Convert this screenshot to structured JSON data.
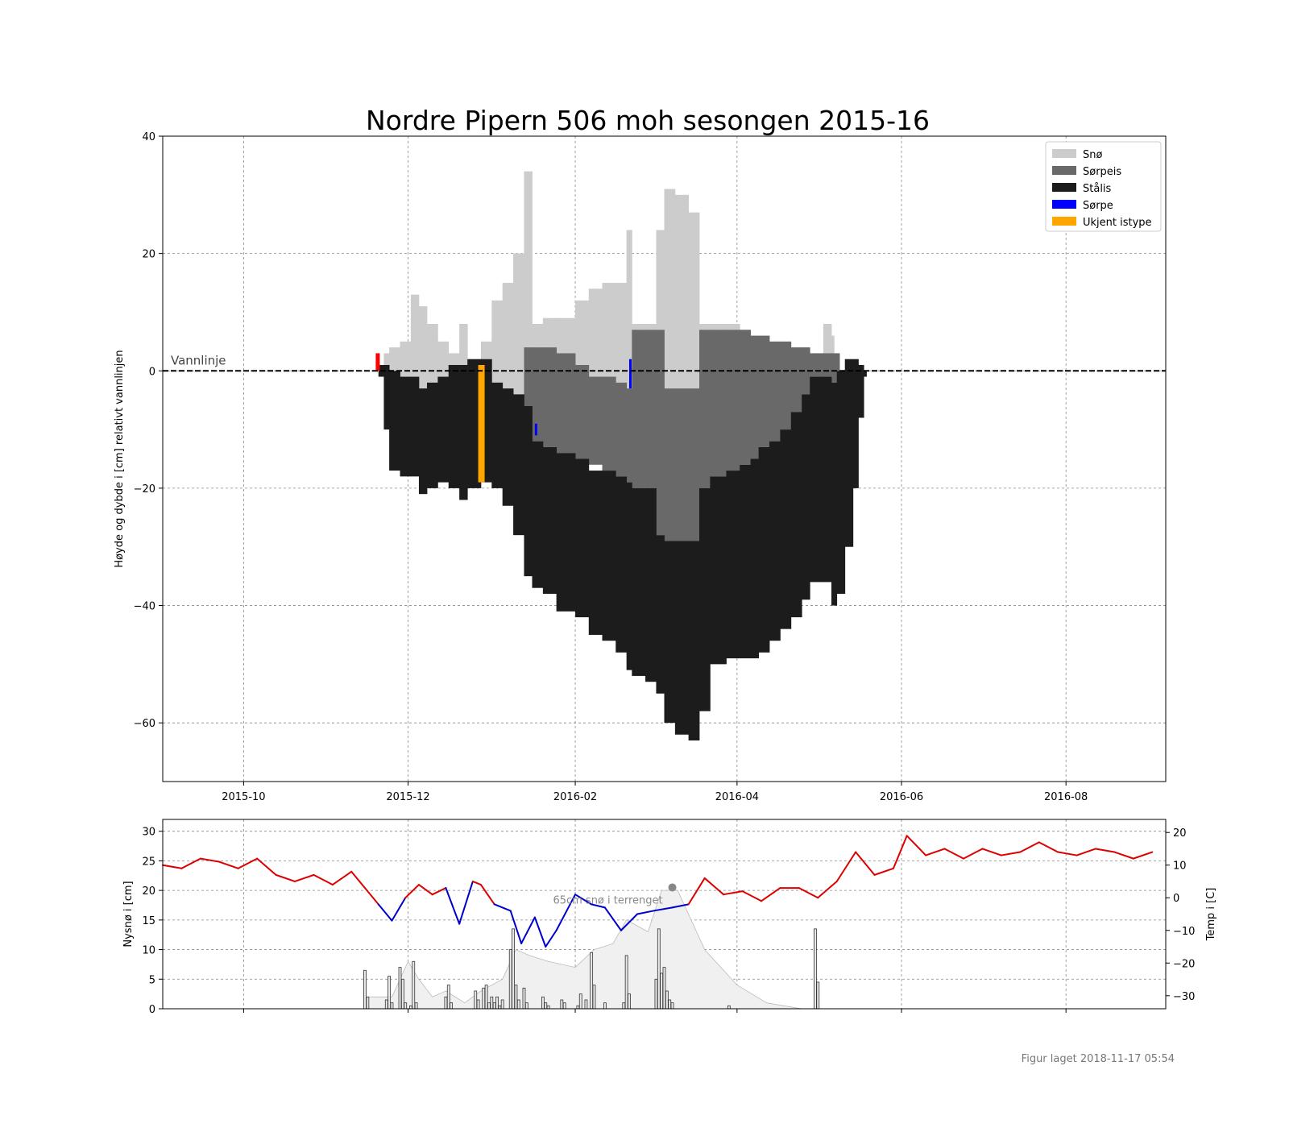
{
  "title": "Nordre Pipern 506 moh sesongen 2015-16",
  "footer": "Figur laget 2018-11-17 05:54",
  "colors": {
    "snow": "#cccccc",
    "slush_ice": "#696969",
    "black_ice": "#1c1c1c",
    "slush": "#0000ff",
    "unknown": "#ffa500",
    "temp_warm": "#dd0000",
    "temp_cold": "#0000cc",
    "waterline": "#000000",
    "grid": "#888888"
  },
  "chart_data": [
    {
      "type": "area",
      "ylabel": "Høyde og dybde i [cm] relativt vannlinjen",
      "ylim": [
        -70,
        40
      ],
      "yticks": [
        40,
        20,
        0,
        -20,
        -40,
        -60
      ],
      "xlim": [
        "2015-09-01",
        "2016-09-07"
      ],
      "xticks": [
        "2015-10",
        "2015-12",
        "2016-02",
        "2016-04",
        "2016-06",
        "2016-08"
      ],
      "grid": true,
      "legend_position": "top-right",
      "legend": [
        {
          "label": "Snø",
          "color": "#cccccc"
        },
        {
          "label": "Sørpeis",
          "color": "#696969"
        },
        {
          "label": "Stålis",
          "color": "#1c1c1c"
        },
        {
          "label": "Sørpe",
          "color": "#0000ff"
        },
        {
          "label": "Ukjent istype",
          "color": "#ffa500"
        }
      ],
      "waterline_label": "Vannlinje",
      "layers": {
        "black_ice": [
          [
            "2015-11-20",
            1,
            -1
          ],
          [
            "2015-11-22",
            1,
            -10
          ],
          [
            "2015-11-24",
            0,
            -17
          ],
          [
            "2015-11-28",
            -1,
            -18
          ],
          [
            "2015-12-02",
            -1,
            -18
          ],
          [
            "2015-12-05",
            -3,
            -21
          ],
          [
            "2015-12-08",
            -2,
            -20
          ],
          [
            "2015-12-12",
            -1,
            -19
          ],
          [
            "2015-12-16",
            1,
            -20
          ],
          [
            "2015-12-20",
            1,
            -22
          ],
          [
            "2015-12-23",
            2,
            -20
          ],
          [
            "2015-12-28",
            2,
            -19
          ],
          [
            "2016-01-01",
            -2,
            -20
          ],
          [
            "2016-01-05",
            -3,
            -23
          ],
          [
            "2016-01-09",
            -4,
            -28
          ],
          [
            "2016-01-13",
            -6,
            -35
          ],
          [
            "2016-01-16",
            -12,
            -37
          ],
          [
            "2016-01-20",
            -13,
            -38
          ],
          [
            "2016-01-25",
            -14,
            -41
          ],
          [
            "2016-02-01",
            -15,
            -42
          ],
          [
            "2016-02-06",
            -17,
            -45
          ],
          [
            "2016-02-11",
            -17,
            -46
          ],
          [
            "2016-02-16",
            -18,
            -48
          ],
          [
            "2016-02-20",
            -19,
            -51
          ],
          [
            "2016-02-22",
            -20,
            -52
          ],
          [
            "2016-02-27",
            -20,
            -53
          ],
          [
            "2016-03-02",
            -28,
            -55
          ],
          [
            "2016-03-05",
            -29,
            -60
          ],
          [
            "2016-03-09",
            -29,
            -62
          ],
          [
            "2016-03-14",
            -29,
            -63
          ],
          [
            "2016-03-18",
            -20,
            -58
          ],
          [
            "2016-03-22",
            -18,
            -50
          ],
          [
            "2016-03-28",
            -17,
            -49
          ],
          [
            "2016-04-02",
            -16,
            -49
          ],
          [
            "2016-04-06",
            -15,
            -49
          ],
          [
            "2016-04-09",
            -13,
            -48
          ],
          [
            "2016-04-13",
            -12,
            -46
          ],
          [
            "2016-04-17",
            -10,
            -44
          ],
          [
            "2016-04-21",
            -7,
            -42
          ],
          [
            "2016-04-25",
            -4,
            -39
          ],
          [
            "2016-04-28",
            -1,
            -36
          ],
          [
            "2016-05-03",
            -1,
            -36
          ],
          [
            "2016-05-06",
            -2,
            -40
          ],
          [
            "2016-05-08",
            0,
            -38
          ],
          [
            "2016-05-11",
            2,
            -30
          ],
          [
            "2016-05-14",
            2,
            -20
          ],
          [
            "2016-05-16",
            1,
            -8
          ],
          [
            "2016-05-18",
            0,
            -1
          ]
        ],
        "slush_ice": [
          [
            "2016-01-13",
            4,
            -11
          ],
          [
            "2016-01-16",
            4,
            -12
          ],
          [
            "2016-01-20",
            4,
            -13
          ],
          [
            "2016-01-25",
            3,
            -14
          ],
          [
            "2016-02-01",
            1,
            -15
          ],
          [
            "2016-02-06",
            -1,
            -16
          ],
          [
            "2016-02-11",
            -1,
            -17
          ],
          [
            "2016-02-16",
            -2,
            -18
          ],
          [
            "2016-02-20",
            -3,
            -19
          ],
          [
            "2016-02-22",
            7,
            -20
          ],
          [
            "2016-02-27",
            7,
            -20
          ],
          [
            "2016-03-02",
            7,
            -28
          ],
          [
            "2016-03-05",
            -3,
            -29
          ],
          [
            "2016-03-09",
            -3,
            -29
          ],
          [
            "2016-03-14",
            -3,
            -29
          ],
          [
            "2016-03-18",
            7,
            -20
          ],
          [
            "2016-03-22",
            7,
            -18
          ],
          [
            "2016-03-28",
            7,
            -17
          ],
          [
            "2016-04-02",
            7,
            -16
          ],
          [
            "2016-04-06",
            6,
            -15
          ],
          [
            "2016-04-09",
            6,
            -13
          ],
          [
            "2016-04-13",
            5,
            -12
          ],
          [
            "2016-04-17",
            5,
            -10
          ],
          [
            "2016-04-21",
            4,
            -7
          ],
          [
            "2016-04-25",
            4,
            -4
          ],
          [
            "2016-04-28",
            3,
            -1
          ],
          [
            "2016-05-03",
            3,
            -1
          ],
          [
            "2016-05-06",
            3,
            -2
          ],
          [
            "2016-05-08",
            3,
            0
          ]
        ],
        "snow": [
          [
            "2015-11-22",
            3,
            1
          ],
          [
            "2015-11-24",
            4,
            0
          ],
          [
            "2015-11-28",
            5,
            -1
          ],
          [
            "2015-12-02",
            13,
            -1
          ],
          [
            "2015-12-05",
            11,
            -3
          ],
          [
            "2015-12-08",
            8,
            -2
          ],
          [
            "2015-12-12",
            5,
            -1
          ],
          [
            "2015-12-16",
            3,
            1
          ],
          [
            "2015-12-20",
            8,
            1
          ],
          [
            "2015-12-23",
            2,
            2
          ],
          [
            "2015-12-28",
            5,
            2
          ],
          [
            "2016-01-01",
            12,
            -2
          ],
          [
            "2016-01-05",
            15,
            -3
          ],
          [
            "2016-01-09",
            20,
            -4
          ],
          [
            "2016-01-13",
            34,
            -6
          ],
          [
            "2016-01-16",
            8,
            4
          ],
          [
            "2016-01-20",
            9,
            4
          ],
          [
            "2016-01-25",
            9,
            3
          ],
          [
            "2016-02-01",
            12,
            1
          ],
          [
            "2016-02-06",
            14,
            -1
          ],
          [
            "2016-02-11",
            15,
            -1
          ],
          [
            "2016-02-16",
            15,
            -2
          ],
          [
            "2016-02-20",
            24,
            -3
          ],
          [
            "2016-02-22",
            8,
            7
          ],
          [
            "2016-02-27",
            8,
            7
          ],
          [
            "2016-03-02",
            24,
            7
          ],
          [
            "2016-03-05",
            31,
            -3
          ],
          [
            "2016-03-09",
            30,
            -3
          ],
          [
            "2016-03-14",
            27,
            -3
          ],
          [
            "2016-03-18",
            8,
            7
          ],
          [
            "2016-04-02",
            7,
            7
          ],
          [
            "2016-05-03",
            8,
            3
          ],
          [
            "2016-05-06",
            6,
            3
          ]
        ],
        "unknown": [
          [
            "2015-12-27",
            1,
            -19
          ]
        ],
        "slush": [
          [
            "2016-01-17",
            -9,
            -11
          ],
          [
            "2016-02-21",
            2,
            -3
          ]
        ],
        "red_marker": [
          [
            "2015-11-19",
            3,
            0
          ]
        ]
      }
    },
    {
      "type": "bar",
      "ylabel": "Nysnø i [cm]",
      "y2label": "Temp i [C]",
      "ylim": [
        0,
        32
      ],
      "yticks": [
        0,
        5,
        10,
        15,
        20,
        25,
        30
      ],
      "y2lim": [
        -34,
        24
      ],
      "y2ticks": [
        -30,
        -20,
        -10,
        0,
        10,
        20
      ],
      "annotation": "65cm snø i terrenget",
      "annotation_point": [
        "2016-03-08",
        20.5
      ],
      "new_snow": [
        [
          "2015-11-15",
          6.5
        ],
        [
          "2015-11-16",
          2
        ],
        [
          "2015-11-23",
          1.5
        ],
        [
          "2015-11-24",
          5.5
        ],
        [
          "2015-11-25",
          1
        ],
        [
          "2015-11-28",
          7
        ],
        [
          "2015-11-29",
          5
        ],
        [
          "2015-11-30",
          1
        ],
        [
          "2015-12-02",
          0.5
        ],
        [
          "2015-12-03",
          8
        ],
        [
          "2015-12-04",
          1
        ],
        [
          "2015-12-15",
          2
        ],
        [
          "2015-12-16",
          4
        ],
        [
          "2015-12-17",
          1
        ],
        [
          "2015-12-26",
          3
        ],
        [
          "2015-12-27",
          1.5
        ],
        [
          "2015-12-29",
          3.5
        ],
        [
          "2015-12-30",
          4
        ],
        [
          "2015-12-31",
          1
        ],
        [
          "2016-01-01",
          2
        ],
        [
          "2016-01-02",
          1
        ],
        [
          "2016-01-03",
          2
        ],
        [
          "2016-01-04",
          0.5
        ],
        [
          "2016-01-05",
          1.5
        ],
        [
          "2016-01-08",
          10
        ],
        [
          "2016-01-09",
          13.5
        ],
        [
          "2016-01-10",
          4
        ],
        [
          "2016-01-11",
          1.5
        ],
        [
          "2016-01-13",
          3.5
        ],
        [
          "2016-01-14",
          1
        ],
        [
          "2016-01-20",
          2
        ],
        [
          "2016-01-21",
          1
        ],
        [
          "2016-01-22",
          0.5
        ],
        [
          "2016-01-27",
          1.5
        ],
        [
          "2016-01-28",
          1
        ],
        [
          "2016-02-02",
          0.5
        ],
        [
          "2016-02-03",
          2.5
        ],
        [
          "2016-02-05",
          1.5
        ],
        [
          "2016-02-07",
          9.5
        ],
        [
          "2016-02-08",
          4
        ],
        [
          "2016-02-12",
          1
        ],
        [
          "2016-02-19",
          1
        ],
        [
          "2016-02-20",
          9
        ],
        [
          "2016-02-21",
          2.5
        ],
        [
          "2016-03-02",
          5
        ],
        [
          "2016-03-03",
          13.5
        ],
        [
          "2016-03-04",
          6
        ],
        [
          "2016-03-05",
          7
        ],
        [
          "2016-03-06",
          3
        ],
        [
          "2016-03-07",
          1.5
        ],
        [
          "2016-03-08",
          1
        ],
        [
          "2016-03-29",
          0.5
        ],
        [
          "2016-04-30",
          13.5
        ],
        [
          "2016-05-01",
          4.5
        ]
      ],
      "snow_depth": [
        [
          "2015-11-15",
          0
        ],
        [
          "2015-11-16",
          2
        ],
        [
          "2015-11-25",
          2
        ],
        [
          "2015-12-01",
          8
        ],
        [
          "2015-12-05",
          5
        ],
        [
          "2015-12-10",
          2
        ],
        [
          "2015-12-15",
          3
        ],
        [
          "2015-12-22",
          1
        ],
        [
          "2015-12-28",
          3
        ],
        [
          "2016-01-05",
          5
        ],
        [
          "2016-01-10",
          10
        ],
        [
          "2016-01-15",
          9
        ],
        [
          "2016-01-22",
          8
        ],
        [
          "2016-02-01",
          7
        ],
        [
          "2016-02-08",
          10
        ],
        [
          "2016-02-15",
          11
        ],
        [
          "2016-02-20",
          15
        ],
        [
          "2016-02-28",
          13
        ],
        [
          "2016-03-04",
          20
        ],
        [
          "2016-03-10",
          20
        ],
        [
          "2016-03-14",
          16
        ],
        [
          "2016-03-20",
          10
        ],
        [
          "2016-04-01",
          4
        ],
        [
          "2016-04-12",
          1
        ],
        [
          "2016-04-25",
          0
        ]
      ],
      "temperature": [
        [
          "2015-09-01",
          10
        ],
        [
          "2015-09-08",
          9
        ],
        [
          "2015-09-15",
          12
        ],
        [
          "2015-09-22",
          11
        ],
        [
          "2015-09-29",
          9
        ],
        [
          "2015-10-06",
          12
        ],
        [
          "2015-10-13",
          7
        ],
        [
          "2015-10-20",
          5
        ],
        [
          "2015-10-27",
          7
        ],
        [
          "2015-11-03",
          4
        ],
        [
          "2015-11-10",
          8
        ],
        [
          "2015-11-15",
          3
        ],
        [
          "2015-11-20",
          -2
        ],
        [
          "2015-11-25",
          -7
        ],
        [
          "2015-11-30",
          0
        ],
        [
          "2015-12-05",
          4
        ],
        [
          "2015-12-10",
          1
        ],
        [
          "2015-12-15",
          3
        ],
        [
          "2015-12-20",
          -8
        ],
        [
          "2015-12-25",
          5
        ],
        [
          "2015-12-28",
          4
        ],
        [
          "2016-01-02",
          -2
        ],
        [
          "2016-01-08",
          -4
        ],
        [
          "2016-01-12",
          -14
        ],
        [
          "2016-01-17",
          -6
        ],
        [
          "2016-01-21",
          -15
        ],
        [
          "2016-01-25",
          -10
        ],
        [
          "2016-02-01",
          1
        ],
        [
          "2016-02-07",
          -2
        ],
        [
          "2016-02-12",
          -3
        ],
        [
          "2016-02-18",
          -10
        ],
        [
          "2016-02-24",
          -5
        ],
        [
          "2016-03-01",
          -4
        ],
        [
          "2016-03-08",
          -3
        ],
        [
          "2016-03-14",
          -2
        ],
        [
          "2016-03-20",
          6
        ],
        [
          "2016-03-27",
          1
        ],
        [
          "2016-04-03",
          2
        ],
        [
          "2016-04-10",
          -1
        ],
        [
          "2016-04-17",
          3
        ],
        [
          "2016-04-24",
          3
        ],
        [
          "2016-05-01",
          0
        ],
        [
          "2016-05-08",
          5
        ],
        [
          "2016-05-15",
          14
        ],
        [
          "2016-05-22",
          7
        ],
        [
          "2016-05-29",
          9
        ],
        [
          "2016-06-03",
          19
        ],
        [
          "2016-06-10",
          13
        ],
        [
          "2016-06-17",
          15
        ],
        [
          "2016-06-24",
          12
        ],
        [
          "2016-07-01",
          15
        ],
        [
          "2016-07-08",
          13
        ],
        [
          "2016-07-15",
          14
        ],
        [
          "2016-07-22",
          17
        ],
        [
          "2016-07-29",
          14
        ],
        [
          "2016-08-05",
          13
        ],
        [
          "2016-08-12",
          15
        ],
        [
          "2016-08-19",
          14
        ],
        [
          "2016-08-26",
          12
        ],
        [
          "2016-09-02",
          14
        ]
      ]
    }
  ]
}
